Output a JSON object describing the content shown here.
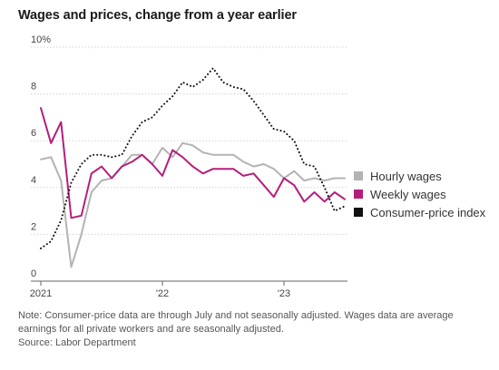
{
  "chart_data": {
    "type": "line",
    "title": "Wages and prices, change from a year earlier",
    "x": [
      "2021-01",
      "2021-02",
      "2021-03",
      "2021-04",
      "2021-05",
      "2021-06",
      "2021-07",
      "2021-08",
      "2021-09",
      "2021-10",
      "2021-11",
      "2021-12",
      "2022-01",
      "2022-02",
      "2022-03",
      "2022-04",
      "2022-05",
      "2022-06",
      "2022-07",
      "2022-08",
      "2022-09",
      "2022-10",
      "2022-11",
      "2022-12",
      "2023-01",
      "2023-02",
      "2023-03",
      "2023-04",
      "2023-05",
      "2023-06",
      "2023-07"
    ],
    "x_ticks": [
      {
        "date": "2021-01",
        "label": "2021"
      },
      {
        "date": "2022-01",
        "label": "'22"
      },
      {
        "date": "2023-01",
        "label": "'23"
      }
    ],
    "y_ticks": [
      {
        "value": 0,
        "label": "0"
      },
      {
        "value": 2,
        "label": "2"
      },
      {
        "value": 4,
        "label": "4"
      },
      {
        "value": 6,
        "label": "6"
      },
      {
        "value": 8,
        "label": "8"
      },
      {
        "value": 10,
        "label": "10%"
      }
    ],
    "ylim": [
      0,
      10
    ],
    "grid": true,
    "legend_position": "right",
    "series": [
      {
        "name": "Hourly wages",
        "color": "#b3b3b3",
        "style": "solid",
        "values": [
          5.2,
          5.3,
          4.3,
          0.6,
          2.0,
          3.8,
          4.3,
          4.4,
          4.9,
          5.4,
          5.4,
          5.0,
          5.7,
          5.3,
          5.9,
          5.8,
          5.5,
          5.4,
          5.4,
          5.4,
          5.1,
          4.9,
          5.0,
          4.8,
          4.4,
          4.7,
          4.3,
          4.4,
          4.3,
          4.4,
          4.4
        ]
      },
      {
        "name": "Weekly wages",
        "color": "#b51d7a",
        "style": "solid",
        "values": [
          7.4,
          5.9,
          6.8,
          2.7,
          2.8,
          4.6,
          4.9,
          4.4,
          4.9,
          5.1,
          5.4,
          5.0,
          4.5,
          5.6,
          5.3,
          4.9,
          4.6,
          4.8,
          4.8,
          4.8,
          4.5,
          4.6,
          4.1,
          3.6,
          4.4,
          4.1,
          3.4,
          3.8,
          3.4,
          3.8,
          3.5
        ]
      },
      {
        "name": "Consumer-price index",
        "color": "#111111",
        "style": "dotted",
        "values": [
          1.4,
          1.7,
          2.6,
          4.2,
          5.0,
          5.4,
          5.4,
          5.3,
          5.4,
          6.2,
          6.8,
          7.0,
          7.5,
          7.9,
          8.5,
          8.3,
          8.6,
          9.1,
          8.5,
          8.3,
          8.2,
          7.7,
          7.1,
          6.5,
          6.4,
          6.0,
          5.0,
          4.9,
          4.0,
          3.0,
          3.2
        ]
      }
    ]
  },
  "note": "Note: Consumer-price data are through July and not seasonally adjusted. Wages data are average earnings for all private workers and are seasonally adjusted.",
  "source": "Source: Labor Department"
}
